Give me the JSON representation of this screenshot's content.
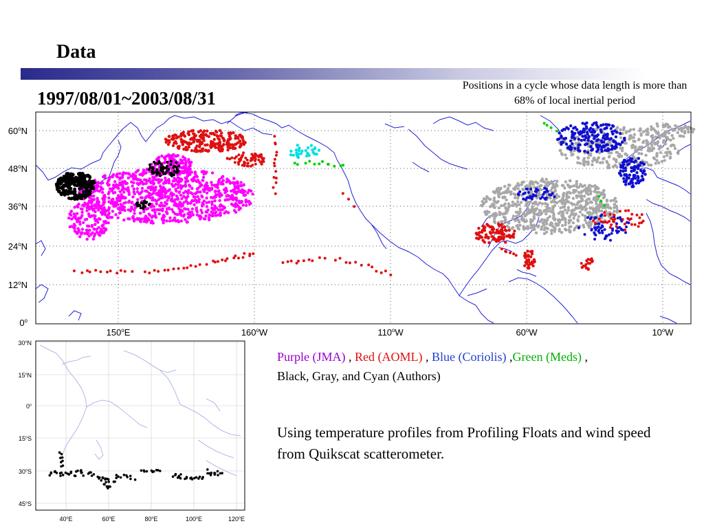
{
  "slide": {
    "title": "Data",
    "date_range": "1997/08/01~2003/08/31",
    "note": "Positions in a cycle whose data length is more than 68% of local inertial period"
  },
  "main_map": {
    "lat_labels": [
      "60",
      "48",
      "36",
      "24",
      "12",
      "0"
    ],
    "lat_suffix": [
      "N",
      "N",
      "N",
      "N",
      "N",
      ""
    ],
    "lon_labels": [
      "150",
      "160",
      "110",
      "60",
      "10"
    ],
    "lon_suffix": [
      "E",
      "W",
      "W",
      "W",
      "W"
    ],
    "colors": {
      "coast": "#1f1fd6",
      "red": "#e01010",
      "magenta": "#ff00ff",
      "blue": "#1010d0",
      "gray": "#a8a8a8",
      "green": "#00d000",
      "cyan": "#00e0e0",
      "black": "#000000"
    }
  },
  "south_map": {
    "lat_labels": [
      "30",
      "15",
      "0",
      "15",
      "30",
      "45"
    ],
    "lat_suffix": [
      "N",
      "N",
      "",
      "S",
      "S",
      "S"
    ],
    "lon_labels": [
      "40",
      "60",
      "80",
      "100",
      "120"
    ],
    "lon_suffix": [
      "E",
      "E",
      "E",
      "E",
      "E"
    ]
  },
  "legend": {
    "purple": "Purple (JMA)",
    "sep1": " , ",
    "red": "Red (AOML)",
    "sep2": " , ",
    "blue": "Blue (Coriolis)",
    "sep3": " ,",
    "green": "Green (Meds)",
    "sep4": " ,",
    "rest": "Black, Gray, and Cyan (Authors)"
  },
  "description": "Using temperature profiles from Profiling Floats and wind speed from Quikscat scatterometer."
}
